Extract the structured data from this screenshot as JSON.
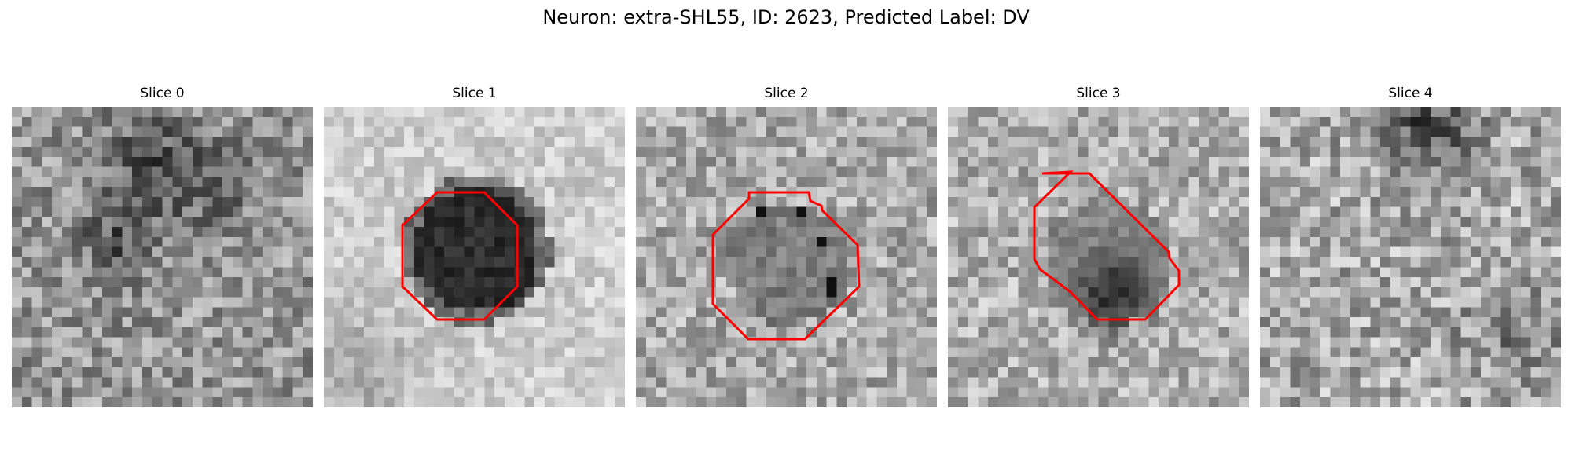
{
  "figure": {
    "title": "Neuron: extra-SHL55, ID: 2623, Predicted Label: DV"
  },
  "colors": {
    "contour": "#ff0000",
    "colormap": "gray"
  },
  "panels": [
    {
      "title": "Slice 0",
      "has_contour": false
    },
    {
      "title": "Slice 1",
      "has_contour": true
    },
    {
      "title": "Slice 2",
      "has_contour": true
    },
    {
      "title": "Slice 3",
      "has_contour": true
    },
    {
      "title": "Slice 4",
      "has_contour": false
    }
  ]
}
